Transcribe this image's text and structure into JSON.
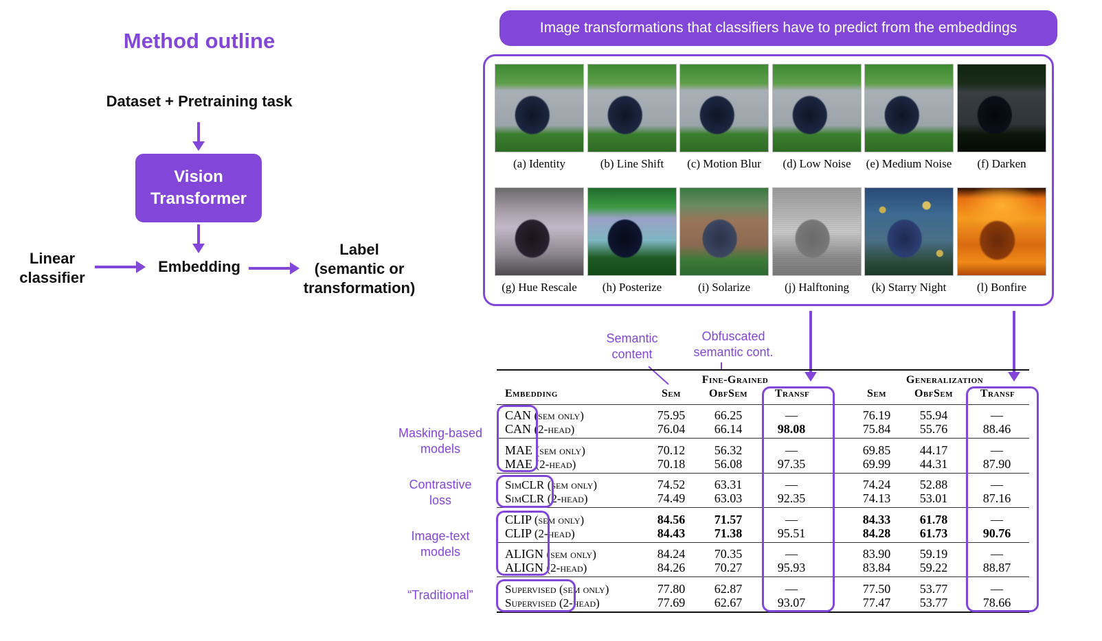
{
  "outline": {
    "title": "Method outline",
    "dataset": "Dataset + Pretraining task",
    "vit_line1": "Vision",
    "vit_line2": "Transformer",
    "linear_line1": "Linear",
    "linear_line2": "classifier",
    "embedding": "Embedding",
    "label_line1": "Label",
    "label_line2": "(semantic or",
    "label_line3": "transformation)"
  },
  "banner": "Image transformations that classifiers have to predict from the embeddings",
  "transforms": [
    {
      "label": "(a) Identity",
      "style": "identity"
    },
    {
      "label": "(b) Line Shift",
      "style": "identity"
    },
    {
      "label": "(c) Motion Blur",
      "style": "identity"
    },
    {
      "label": "(d) Low Noise",
      "style": "identity"
    },
    {
      "label": "(e) Medium Noise",
      "style": "identity"
    },
    {
      "label": "(f) Darken",
      "style": "darken"
    },
    {
      "label": "(g) Hue Rescale",
      "style": "hue"
    },
    {
      "label": "(h) Posterize",
      "style": "posterize"
    },
    {
      "label": "(i) Solarize",
      "style": "solarize"
    },
    {
      "label": "(j) Halftoning",
      "style": "halftone"
    },
    {
      "label": "(k) Starry Night",
      "style": "starry"
    },
    {
      "label": "(l) Bonfire",
      "style": "bonfire"
    }
  ],
  "annotations": {
    "semantic_line1": "Semantic",
    "semantic_line2": "content",
    "obf_line1": "Obfuscated",
    "obf_line2": "semantic cont."
  },
  "groups": {
    "masking_line1": "Masking-based",
    "masking_line2": "models",
    "contrastive_line1": "Contrastive",
    "contrastive_line2": "loss",
    "imagetext_line1": "Image-text",
    "imagetext_line2": "models",
    "traditional": "“Traditional”"
  },
  "table": {
    "group_fine": "Fine-Grained",
    "group_gen": "Generalization",
    "col_embedding": "Embedding",
    "col_sem": "Sem",
    "col_obfsem": "ObfSem",
    "col_transf": "Transf",
    "rows": [
      {
        "model": "CAN",
        "variant": "(sem only)",
        "fg_sem": "75.95",
        "fg_obf": "66.25",
        "fg_tr": "—",
        "g_sem": "76.19",
        "g_obf": "55.94",
        "g_tr": "—"
      },
      {
        "model": "CAN",
        "variant": "(2-head)",
        "fg_sem": "76.04",
        "fg_obf": "66.14",
        "fg_tr": "98.08",
        "g_sem": "75.84",
        "g_obf": "55.76",
        "g_tr": "88.46"
      },
      {
        "model": "MAE",
        "variant": "(sem only)",
        "fg_sem": "70.12",
        "fg_obf": "56.32",
        "fg_tr": "—",
        "g_sem": "69.85",
        "g_obf": "44.17",
        "g_tr": "—"
      },
      {
        "model": "MAE",
        "variant": "(2-head)",
        "fg_sem": "70.18",
        "fg_obf": "56.08",
        "fg_tr": "97.35",
        "g_sem": "69.99",
        "g_obf": "44.31",
        "g_tr": "87.90"
      },
      {
        "model": "SimCLR",
        "variant": "(sem only)",
        "fg_sem": "74.52",
        "fg_obf": "63.31",
        "fg_tr": "—",
        "g_sem": "74.24",
        "g_obf": "52.88",
        "g_tr": "—"
      },
      {
        "model": "SimCLR",
        "variant": "(2-head)",
        "fg_sem": "74.49",
        "fg_obf": "63.03",
        "fg_tr": "92.35",
        "g_sem": "74.13",
        "g_obf": "53.01",
        "g_tr": "87.16"
      },
      {
        "model": "CLIP",
        "variant": "(sem only)",
        "fg_sem": "84.56",
        "fg_obf": "71.57",
        "fg_tr": "—",
        "g_sem": "84.33",
        "g_obf": "61.78",
        "g_tr": "—"
      },
      {
        "model": "CLIP",
        "variant": "(2-head)",
        "fg_sem": "84.43",
        "fg_obf": "71.38",
        "fg_tr": "95.51",
        "g_sem": "84.28",
        "g_obf": "61.73",
        "g_tr": "90.76"
      },
      {
        "model": "ALIGN",
        "variant": "(sem only)",
        "fg_sem": "84.24",
        "fg_obf": "70.35",
        "fg_tr": "—",
        "g_sem": "83.90",
        "g_obf": "59.19",
        "g_tr": "—"
      },
      {
        "model": "ALIGN",
        "variant": "(2-head)",
        "fg_sem": "84.26",
        "fg_obf": "70.27",
        "fg_tr": "95.93",
        "g_sem": "83.84",
        "g_obf": "59.22",
        "g_tr": "88.87"
      },
      {
        "model": "Supervised",
        "variant": "(sem only)",
        "fg_sem": "77.80",
        "fg_obf": "62.87",
        "fg_tr": "—",
        "g_sem": "77.50",
        "g_obf": "53.77",
        "g_tr": "—"
      },
      {
        "model": "Supervised",
        "variant": "(2-head)",
        "fg_sem": "77.69",
        "fg_obf": "62.67",
        "fg_tr": "93.07",
        "g_sem": "77.47",
        "g_obf": "53.77",
        "g_tr": "78.66"
      }
    ]
  },
  "colors": {
    "accent": "#8247d8"
  }
}
